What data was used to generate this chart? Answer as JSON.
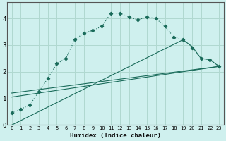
{
  "xlabel": "Humidex (Indice chaleur)",
  "background_color": "#cff0ee",
  "grid_color": "#b0d8d0",
  "line_color": "#1a6b5a",
  "xlim": [
    -0.5,
    23.5
  ],
  "ylim": [
    0,
    4.6
  ],
  "xticks": [
    0,
    1,
    2,
    3,
    4,
    5,
    6,
    7,
    8,
    9,
    10,
    11,
    12,
    13,
    14,
    15,
    16,
    17,
    18,
    19,
    20,
    21,
    22,
    23
  ],
  "yticks": [
    0,
    1,
    2,
    3,
    4
  ],
  "series1_x": [
    0,
    1,
    2,
    3,
    4,
    5,
    6,
    7,
    8,
    9,
    10,
    11,
    12,
    13,
    14,
    15,
    16,
    17,
    18,
    19,
    20,
    21,
    22,
    23
  ],
  "series1_y": [
    0.45,
    0.6,
    0.75,
    1.25,
    1.75,
    2.3,
    2.5,
    3.2,
    3.45,
    3.55,
    3.7,
    4.2,
    4.2,
    4.05,
    3.95,
    4.05,
    4.0,
    3.7,
    3.3,
    3.2,
    2.9,
    2.5,
    2.45,
    2.2
  ],
  "series2_x": [
    0,
    19,
    20,
    21,
    22,
    23
  ],
  "series2_y": [
    0,
    3.2,
    2.95,
    2.5,
    2.45,
    2.2
  ],
  "series3_x": [
    0,
    23
  ],
  "series3_y": [
    1.2,
    2.2
  ],
  "series4_x": [
    0,
    23
  ],
  "series4_y": [
    1.05,
    2.2
  ]
}
